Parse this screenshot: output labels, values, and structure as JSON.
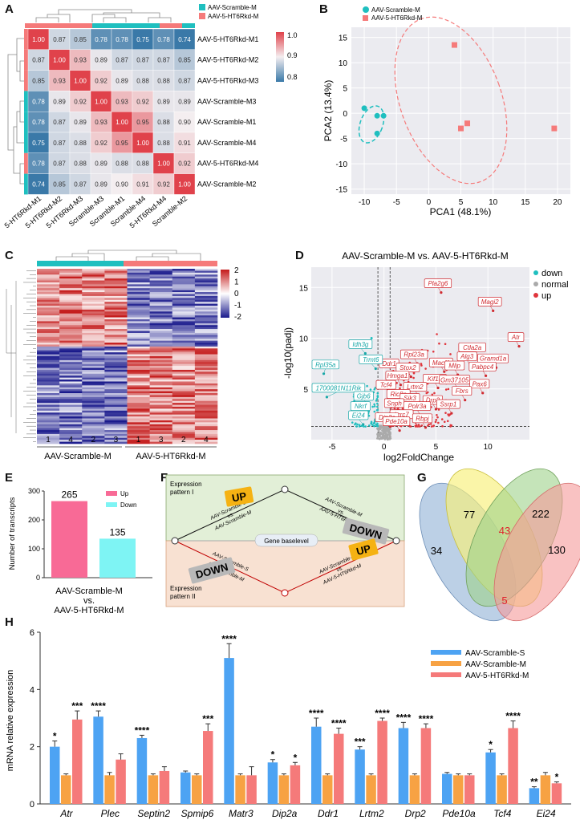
{
  "panels": {
    "A": "A",
    "B": "B",
    "C": "C",
    "D": "D",
    "E": "E",
    "F": "F",
    "G": "G",
    "H": "H"
  },
  "colors": {
    "scramble_s": "#4da3f3",
    "scramble_m": "#f7a243",
    "ht6": "#f57a7a",
    "teal": "#1fbfbf",
    "salmon": "#f57a7a",
    "up_bar": "#f86a96",
    "down_bar": "#7ef4f4",
    "heat_blue": "#1a1a8c",
    "heat_red": "#c41a1a"
  },
  "panel_a": {
    "legend": [
      "AAV-Scramble-M",
      "AAV-5-HT6Rkd-M"
    ],
    "row_labels": [
      "AAV-5-HT6Rkd-M1",
      "AAV-5-HT6Rkd-M2",
      "AAV-5-HT6Rkd-M3",
      "AAV-Scramble-M3",
      "AAV-Scramble-M1",
      "AAV-Scramble-M4",
      "AAV-5-HT6Rkd-M4",
      "AAV-Scramble-M2"
    ],
    "col_labels": [
      "5-HT6Rkd-M1",
      "5-HT6Rkd-M2",
      "5-HT6Rkd-M3",
      "Scramble-M3",
      "Scramble-M1",
      "Scramble-M4",
      "5-HT6Rkd-M4",
      "Scramble-M2"
    ],
    "row_groups": [
      "ht6",
      "ht6",
      "ht6",
      "scr",
      "scr",
      "scr",
      "ht6",
      "scr"
    ],
    "matrix": [
      [
        "1.00",
        "0.87",
        "0.85",
        "0.78",
        "0.78",
        "0.75",
        "0.78",
        "0.74"
      ],
      [
        "0.87",
        "1.00",
        "0.93",
        "0.89",
        "0.87",
        "0.87",
        "0.87",
        "0.85"
      ],
      [
        "0.85",
        "0.93",
        "1.00",
        "0.92",
        "0.89",
        "0.88",
        "0.88",
        "0.87"
      ],
      [
        "0.78",
        "0.89",
        "0.92",
        "1.00",
        "0.93",
        "0.92",
        "0.89",
        "0.89"
      ],
      [
        "0.78",
        "0.87",
        "0.89",
        "0.93",
        "1.00",
        "0.95",
        "0.88",
        "0.90"
      ],
      [
        "0.75",
        "0.87",
        "0.88",
        "0.92",
        "0.95",
        "1.00",
        "0.88",
        "0.91"
      ],
      [
        "0.78",
        "0.87",
        "0.88",
        "0.89",
        "0.88",
        "0.88",
        "1.00",
        "0.92"
      ],
      [
        "0.74",
        "0.85",
        "0.87",
        "0.89",
        "0.90",
        "0.91",
        "0.92",
        "1.00"
      ]
    ],
    "scale_ticks": [
      "1.0",
      "0.9",
      "0.8"
    ]
  },
  "chart_data": [
    {
      "panel": "B",
      "type": "scatter",
      "title": "",
      "xlabel": "PCA1 (48.1%)",
      "ylabel": "PCA2 (13.4%)",
      "xlim": [
        -12,
        22
      ],
      "ylim": [
        -16,
        17
      ],
      "xticks": [
        "-10",
        "-5",
        "0",
        "5",
        "10",
        "15",
        "20"
      ],
      "yticks": [
        "15",
        "10",
        "5",
        "0",
        "-5",
        "-10",
        "-15"
      ],
      "legend": [
        "AAV-Scramble-M",
        "AAV-5-HT6Rkd-M"
      ],
      "series": [
        {
          "name": "AAV-Scramble-M",
          "points": [
            [
              -10,
              1
            ],
            [
              -8,
              -0.5
            ],
            [
              -7,
              -0.5
            ],
            [
              -8,
              -4
            ]
          ]
        },
        {
          "name": "AAV-5-HT6Rkd-M",
          "points": [
            [
              4,
              13.5
            ],
            [
              6,
              -2
            ],
            [
              5,
              -3
            ],
            [
              19.5,
              -3
            ]
          ]
        }
      ]
    },
    {
      "panel": "D",
      "type": "scatter",
      "title": "AAV-Scramble-M vs. AAV-5-HT6Rkd-M",
      "xlabel": "log2FoldChange",
      "ylabel": "-log10(padj)",
      "xlim": [
        -7,
        14
      ],
      "ylim": [
        0,
        17
      ],
      "xticks": [
        "-5",
        "0",
        "5",
        "10"
      ],
      "yticks": [
        "15",
        "10",
        "5"
      ],
      "legend": [
        "down",
        "normal",
        "up"
      ],
      "up_genes": [
        {
          "name": "Pla2g6",
          "x": 5.5,
          "y": 14.5
        },
        {
          "name": "Magi2",
          "x": 10.5,
          "y": 12.7
        },
        {
          "name": "Atr",
          "x": 13,
          "y": 9.2
        },
        {
          "name": "Ctla2a",
          "x": 8.8,
          "y": 8.2
        },
        {
          "name": "Gramd1a",
          "x": 10.8,
          "y": 7.1
        },
        {
          "name": "Rpl23a",
          "x": 3.2,
          "y": 7.5
        },
        {
          "name": "Alg3",
          "x": 8.3,
          "y": 7.3
        },
        {
          "name": "Macf1",
          "x": 5.8,
          "y": 6.7
        },
        {
          "name": "Mlip",
          "x": 7.1,
          "y": 6.4
        },
        {
          "name": "Pabpc4",
          "x": 9.8,
          "y": 6.3
        },
        {
          "name": "Ddr1",
          "x": 0.8,
          "y": 6.6
        },
        {
          "name": "Stox2",
          "x": 2.6,
          "y": 6.2
        },
        {
          "name": "Hmga1",
          "x": 1.6,
          "y": 5.4
        },
        {
          "name": "Kif1b",
          "x": 5.2,
          "y": 5.1
        },
        {
          "name": "Gm37105",
          "x": 7.1,
          "y": 5
        },
        {
          "name": "Pax6",
          "x": 9.5,
          "y": 4.6
        },
        {
          "name": "Tcf4",
          "x": 0.5,
          "y": 4.5
        },
        {
          "name": "Lrtm2",
          "x": 3.3,
          "y": 4.3
        },
        {
          "name": "Fbrs",
          "x": 7.8,
          "y": 3.9
        },
        {
          "name": "Ric8a",
          "x": 1.7,
          "y": 3.6
        },
        {
          "name": "Sik3",
          "x": 2.8,
          "y": 3.2
        },
        {
          "name": "Drp2",
          "x": 5,
          "y": 3
        },
        {
          "name": "Ssrp1",
          "x": 6.5,
          "y": 2.6
        },
        {
          "name": "Snph",
          "x": 1.3,
          "y": 2.7
        },
        {
          "name": "Polr3a",
          "x": 3.5,
          "y": 2.4
        },
        {
          "name": "Lrrc7",
          "x": 2,
          "y": 1.6
        },
        {
          "name": "Rbpj",
          "x": 4,
          "y": 1.2
        },
        {
          "name": "Dip2a",
          "x": 0.6,
          "y": 1.3
        },
        {
          "name": "Pde10a",
          "x": 1.5,
          "y": 0.9
        }
      ],
      "down_genes": [
        {
          "name": "Idh3g",
          "x": -1.8,
          "y": 8.5
        },
        {
          "name": "Rpl35a",
          "x": -5.8,
          "y": 6.5
        },
        {
          "name": "Trmt6",
          "x": -0.8,
          "y": 7
        },
        {
          "name": "1700081N11Rik",
          "x": -5.5,
          "y": 4.2
        },
        {
          "name": "Gjb6",
          "x": -1.5,
          "y": 3.4
        },
        {
          "name": "Nkrf",
          "x": -1.8,
          "y": 2.4
        },
        {
          "name": "Ei24",
          "x": -2,
          "y": 1.5
        }
      ]
    },
    {
      "panel": "E",
      "type": "bar",
      "title": "",
      "ylabel": "Number of transcripts",
      "xlabel": "AAV-Scramble-M vs. AAV-5-HT6Rkd-M",
      "categories": [
        "Up",
        "Down"
      ],
      "values": [
        265,
        135
      ],
      "ylim": [
        0,
        300
      ],
      "yticks": [
        "0",
        "100",
        "200",
        "300"
      ],
      "value_labels": [
        "265",
        "135"
      ],
      "legend": [
        "Up",
        "Down"
      ]
    },
    {
      "panel": "H",
      "type": "bar",
      "ylabel": "mRNA relative expression",
      "ylim": [
        0,
        6
      ],
      "yticks": [
        "0",
        "2",
        "4",
        "6"
      ],
      "categories": [
        "Atr",
        "Plec",
        "Septin2",
        "Spmip6",
        "Matr3",
        "Dip2a",
        "Ddr1",
        "Lrtm2",
        "Drp2",
        "Pde10a",
        "Tcf4",
        "Ei24"
      ],
      "series": [
        {
          "name": "AAV-Scramble-S",
          "values": [
            2.0,
            3.05,
            2.3,
            1.1,
            5.1,
            1.45,
            2.7,
            1.9,
            2.65,
            1.05,
            1.8,
            0.55
          ],
          "errors": [
            0.2,
            0.2,
            0.1,
            0.05,
            0.5,
            0.1,
            0.3,
            0.1,
            0.2,
            0.05,
            0.1,
            0.05
          ]
        },
        {
          "name": "AAV-Scramble-M",
          "values": [
            1.0,
            1.0,
            1.0,
            1.0,
            1.0,
            1.0,
            1.0,
            1.0,
            1.0,
            1.0,
            1.0,
            1.0
          ],
          "errors": [
            0.05,
            0.1,
            0.05,
            0.05,
            0.05,
            0.05,
            0.05,
            0.05,
            0.05,
            0.05,
            0.05,
            0.1
          ]
        },
        {
          "name": "AAV-5-HT6Rkd-M",
          "values": [
            2.95,
            1.55,
            1.15,
            2.55,
            1.0,
            1.35,
            2.45,
            2.9,
            2.65,
            1.0,
            2.65,
            0.72
          ],
          "errors": [
            0.3,
            0.2,
            0.15,
            0.25,
            0.3,
            0.1,
            0.2,
            0.1,
            0.15,
            0.05,
            0.25,
            0.05
          ]
        }
      ],
      "stars": [
        [
          "*",
          "",
          "***"
        ],
        [
          "****",
          "",
          ""
        ],
        [
          "****",
          "",
          ""
        ],
        [
          "",
          "",
          "***"
        ],
        [
          "****",
          "",
          ""
        ],
        [
          "*",
          "",
          "*"
        ],
        [
          "****",
          "",
          "****"
        ],
        [
          "***",
          "",
          "****"
        ],
        [
          "****",
          "",
          "****"
        ],
        [
          "",
          "",
          ""
        ],
        [
          "*",
          "",
          "****"
        ],
        [
          "**",
          "",
          "*"
        ]
      ]
    }
  ],
  "panel_c": {
    "groups": [
      "AAV-Scramble-M",
      "AAV-5-HT6Rkd-M"
    ],
    "col_labels": [
      "1",
      "4",
      "2",
      "3",
      "1",
      "3",
      "2",
      "4"
    ],
    "scale_ticks": [
      "2",
      "1",
      "0",
      "-1",
      "-2"
    ]
  },
  "panel_f": {
    "pattern1": "Expression pattern I",
    "pattern2": "Expression pattern II",
    "baseline": "Gene baselevel",
    "up": "UP",
    "down": "DOWN",
    "left_edge_a": "AAV-Scramble-S",
    "left_edge_vs": "vs.",
    "left_edge_b": "AAV-Scramble-M",
    "right_edge_a": "AAV-Scramble-M",
    "right_edge_vs": "vs.",
    "right_edge_b": "AAV-5-HT6Rkd-M"
  },
  "panel_g": {
    "counts": [
      "34",
      "77",
      "222",
      "130",
      "43",
      "5"
    ]
  }
}
